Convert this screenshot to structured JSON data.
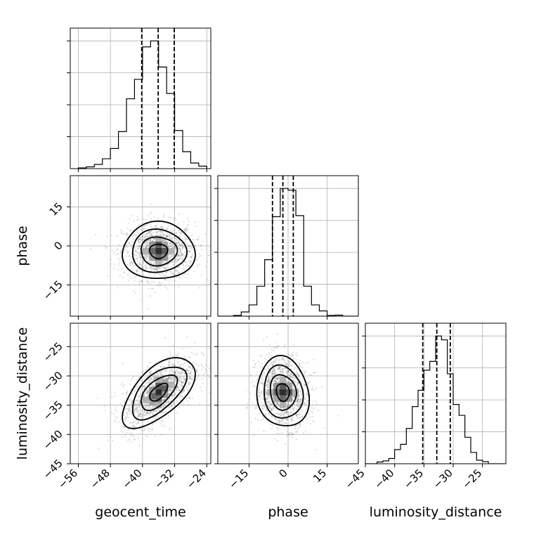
{
  "chart_data": {
    "type": "corner",
    "parameters": [
      "geocent_time",
      "phase",
      "luminosity_distance"
    ],
    "axis_labels": {
      "x": [
        "geocent_time",
        "phase",
        "luminosity_distance"
      ],
      "y": [
        "",
        "phase",
        "luminosity_distance"
      ]
    },
    "ranges": {
      "geocent_time": [
        -58,
        -23
      ],
      "phase": [
        -27,
        27
      ],
      "luminosity_distance": [
        -45,
        -21
      ]
    },
    "ticks": {
      "geocent_time": [
        -56,
        -48,
        -40,
        -32,
        -24
      ],
      "phase": [
        -15,
        0,
        15
      ],
      "luminosity_distance": [
        -45,
        -40,
        -35,
        -30,
        -25
      ]
    },
    "quantiles": {
      "geocent_time": [
        -40.2,
        -36.1,
        -32.1
      ],
      "phase": [
        -6.0,
        -2.0,
        2.0
      ],
      "luminosity_distance": [
        -35.2,
        -32.8,
        -30.5
      ]
    },
    "histograms": {
      "geocent_time": {
        "edges": [
          -56,
          -54,
          -52,
          -50,
          -48,
          -46,
          -44,
          -42,
          -40,
          -38,
          -36,
          -34,
          -32,
          -30,
          -28,
          -26,
          -24
        ],
        "heights": [
          0.2,
          0.5,
          1.2,
          2.8,
          5.7,
          10.5,
          19.8,
          25.3,
          34.5,
          36.2,
          28.8,
          21.3,
          10.8,
          4.8,
          1.6,
          0.7
        ]
      },
      "phase": {
        "edges": [
          -27,
          -24,
          -21,
          -18,
          -15,
          -12,
          -9,
          -6,
          -3,
          0,
          3,
          6,
          9,
          12,
          15,
          18,
          21,
          24,
          27
        ],
        "heights": [
          0,
          0,
          0.2,
          1.2,
          3.2,
          8.5,
          16.0,
          28.2,
          36.2,
          35.7,
          28.5,
          8.5,
          3.2,
          1.5,
          0.2,
          0.3,
          0,
          0
        ]
      },
      "luminosity_distance": {
        "edges": [
          -45,
          -44,
          -43,
          -42,
          -41,
          -40,
          -39,
          -38,
          -37,
          -36,
          -35,
          -34,
          -33,
          -32,
          -31,
          -30,
          -29,
          -28,
          -27,
          -26,
          -25,
          -24,
          -23,
          -22,
          -21
        ],
        "heights": [
          0,
          0,
          0.5,
          0.8,
          1.5,
          4.0,
          5.5,
          10.0,
          16.2,
          20.8,
          26.5,
          29.0,
          36.2,
          35.1,
          25.5,
          16.8,
          13.7,
          7.5,
          3.2,
          1.0,
          0.6,
          0,
          0,
          0
        ]
      }
    },
    "contour_levels": [
      0.5,
      1.0,
      1.5,
      2.0
    ],
    "joint": [
      {
        "x": "geocent_time",
        "y": "phase",
        "mean": [
          -36,
          -2
        ],
        "sigma": [
          4.5,
          5.5
        ],
        "corr": 0.0
      },
      {
        "x": "geocent_time",
        "y": "luminosity_distance",
        "mean": [
          -36,
          -32.8
        ],
        "sigma": [
          4.5,
          3.0
        ],
        "corr": 0.6
      },
      {
        "x": "phase",
        "y": "luminosity_distance",
        "mean": [
          -2,
          -32.8
        ],
        "sigma": [
          5.0,
          3.0
        ],
        "corr": -0.1
      }
    ],
    "grid": true
  }
}
